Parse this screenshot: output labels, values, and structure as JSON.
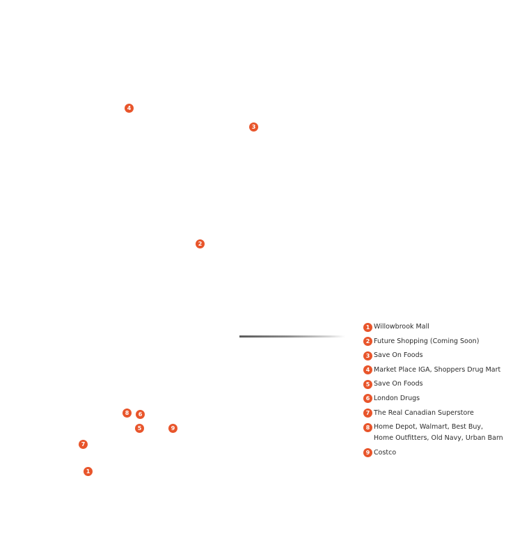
{
  "accent_color": "#e8552b",
  "map": {
    "markers": [
      {
        "id": "4",
        "label": "4"
      },
      {
        "id": "3",
        "label": "3"
      },
      {
        "id": "2",
        "label": "2"
      },
      {
        "id": "8",
        "label": "8"
      },
      {
        "id": "6",
        "label": "6"
      },
      {
        "id": "5",
        "label": "5"
      },
      {
        "id": "9",
        "label": "9"
      },
      {
        "id": "7",
        "label": "7"
      },
      {
        "id": "1",
        "label": "1"
      }
    ]
  },
  "legend": {
    "items": [
      {
        "number": "1",
        "lines": [
          "Willowbrook Mall"
        ]
      },
      {
        "number": "2",
        "lines": [
          "Future Shopping (Coming Soon)"
        ]
      },
      {
        "number": "3",
        "lines": [
          "Save On Foods"
        ]
      },
      {
        "number": "4",
        "lines": [
          "Market Place IGA,  Shoppers Drug Mart"
        ]
      },
      {
        "number": "5",
        "lines": [
          "Save On Foods"
        ]
      },
      {
        "number": "6",
        "lines": [
          "London Drugs"
        ]
      },
      {
        "number": "7",
        "lines": [
          "The Real Canadian Superstore"
        ]
      },
      {
        "number": "8",
        "lines": [
          "Home Depot, Walmart, Best Buy,",
          "Home Outfitters, Old Navy, Urban Barn"
        ]
      },
      {
        "number": "9",
        "lines": [
          "Costco"
        ]
      }
    ]
  }
}
